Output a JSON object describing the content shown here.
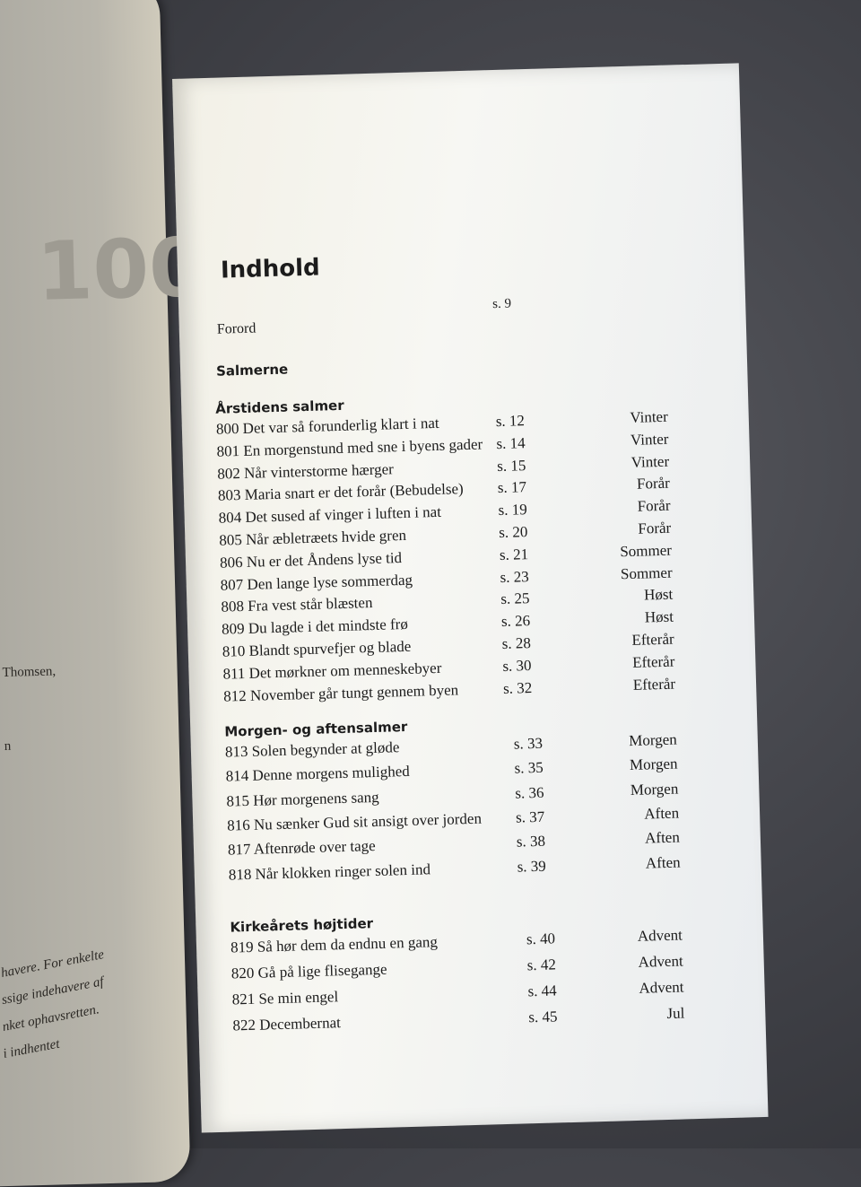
{
  "left_page": {
    "big_number_fragment": "100",
    "fragments": [
      "Thomsen,",
      "n"
    ],
    "italic_lines": [
      "havere. For enkelte",
      "ssige indehavere af",
      "nket ophavsretten.",
      "i indhentet"
    ]
  },
  "toc": {
    "title": "Indhold",
    "forord": {
      "title": "Forord",
      "page": "s. 9"
    },
    "part_heading": "Salmerne",
    "sections": [
      {
        "heading": "Årstidens salmer",
        "entries": [
          {
            "title": "800 Det var så forunderlig klart i nat",
            "page": "s. 12",
            "category": "Vinter"
          },
          {
            "title": "801 En morgenstund med sne i byens gader",
            "page": "s. 14",
            "category": "Vinter"
          },
          {
            "title": "802 Når vinterstorme hærger",
            "page": "s. 15",
            "category": "Vinter"
          },
          {
            "title": "803 Maria snart er det forår (Bebudelse)",
            "page": "s. 17",
            "category": "Forår"
          },
          {
            "title": "804 Det sused af vinger i luften i nat",
            "page": "s. 19",
            "category": "Forår"
          },
          {
            "title": "805 Når æbletræets hvide gren",
            "page": "s. 20",
            "category": "Forår"
          },
          {
            "title": "806 Nu er det Åndens lyse tid",
            "page": "s. 21",
            "category": "Sommer"
          },
          {
            "title": "807 Den lange lyse sommerdag",
            "page": "s. 23",
            "category": "Sommer"
          },
          {
            "title": "808 Fra vest står blæsten",
            "page": "s. 25",
            "category": "Høst"
          },
          {
            "title": "809 Du lagde i det mindste frø",
            "page": "s. 26",
            "category": "Høst"
          },
          {
            "title": "810 Blandt spurvefjer og blade",
            "page": "s. 28",
            "category": "Efterår"
          },
          {
            "title": "811 Det mørkner om menneskebyer",
            "page": "s. 30",
            "category": "Efterår"
          },
          {
            "title": "812 November går tungt gennem byen",
            "page": "s. 32",
            "category": "Efterår"
          }
        ]
      },
      {
        "heading": "Morgen- og aftensalmer",
        "entries": [
          {
            "title": "813 Solen begynder at gløde",
            "page": "s. 33",
            "category": "Morgen"
          },
          {
            "title": "814 Denne morgens mulighed",
            "page": "s. 35",
            "category": "Morgen"
          },
          {
            "title": "815 Hør morgenens sang",
            "page": "s. 36",
            "category": "Morgen"
          },
          {
            "title": "816 Nu sænker Gud sit ansigt over jorden",
            "page": "s. 37",
            "category": "Aften"
          },
          {
            "title": "817 Aftenrøde over tage",
            "page": "s. 38",
            "category": "Aften"
          },
          {
            "title": "818 Når klokken ringer solen ind",
            "page": "s. 39",
            "category": "Aften"
          }
        ]
      },
      {
        "heading": "Kirkeårets højtider",
        "entries": [
          {
            "title": "819 Så hør dem da endnu en gang",
            "page": "s. 40",
            "category": "Advent"
          },
          {
            "title": "820 Gå på lige flisegange",
            "page": "s. 42",
            "category": "Advent"
          },
          {
            "title": "821 Se min engel",
            "page": "s. 44",
            "category": "Advent"
          },
          {
            "title": "822 Decembernat",
            "page": "s. 45",
            "category": "Jul"
          }
        ]
      }
    ]
  }
}
